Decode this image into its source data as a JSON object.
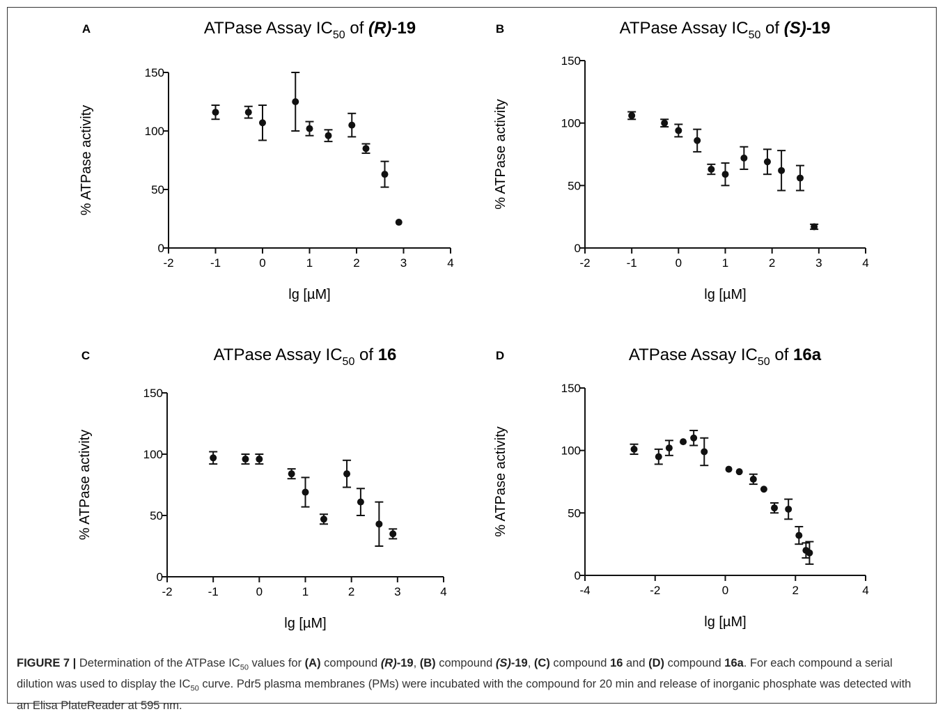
{
  "chart_data": [
    {
      "panel": "A",
      "type": "scatter",
      "title": "ATPase Assay IC50 of (R)-19",
      "title_prefix": "ATPase Assay IC",
      "title_sub": "50",
      "title_mid": " of ",
      "title_compound_italic": "(R)",
      "title_compound_bold": "-19",
      "xlabel": "lg [µM]",
      "ylabel": "% ATPase activity",
      "xlim": [
        -2,
        4
      ],
      "ylim": [
        0,
        150
      ],
      "xticks": [
        "-2",
        "-1",
        "0",
        "1",
        "2",
        "3",
        "4"
      ],
      "yticks": [
        "0",
        "50",
        "100",
        "150"
      ],
      "points": [
        {
          "x": -1.0,
          "y": 116,
          "err": 6
        },
        {
          "x": -0.3,
          "y": 116,
          "err": 5
        },
        {
          "x": 0.0,
          "y": 107,
          "err": 15
        },
        {
          "x": 0.7,
          "y": 125,
          "err": 25
        },
        {
          "x": 1.0,
          "y": 102,
          "err": 6
        },
        {
          "x": 1.4,
          "y": 96,
          "err": 5
        },
        {
          "x": 1.9,
          "y": 105,
          "err": 10
        },
        {
          "x": 2.2,
          "y": 85,
          "err": 4
        },
        {
          "x": 2.6,
          "y": 63,
          "err": 11
        },
        {
          "x": 2.9,
          "y": 22,
          "err": 0
        }
      ]
    },
    {
      "panel": "B",
      "type": "scatter",
      "title": "ATPase Assay IC50 of (S)-19",
      "title_prefix": "ATPase Assay IC",
      "title_sub": "50",
      "title_mid": " of ",
      "title_compound_italic": "(S)",
      "title_compound_bold": "-19",
      "xlabel": "lg [µM]",
      "ylabel": "% ATPase activity",
      "xlim": [
        -2,
        4
      ],
      "ylim": [
        0,
        150
      ],
      "xticks": [
        "-2",
        "-1",
        "0",
        "1",
        "2",
        "3",
        "4"
      ],
      "yticks": [
        "0",
        "50",
        "100",
        "150"
      ],
      "points": [
        {
          "x": -1.0,
          "y": 106,
          "err": 3
        },
        {
          "x": -0.3,
          "y": 100,
          "err": 3
        },
        {
          "x": 0.0,
          "y": 94,
          "err": 5
        },
        {
          "x": 0.4,
          "y": 86,
          "err": 9
        },
        {
          "x": 0.7,
          "y": 63,
          "err": 4
        },
        {
          "x": 1.0,
          "y": 59,
          "err": 9
        },
        {
          "x": 1.4,
          "y": 72,
          "err": 9
        },
        {
          "x": 1.9,
          "y": 69,
          "err": 10
        },
        {
          "x": 2.2,
          "y": 62,
          "err": 16
        },
        {
          "x": 2.6,
          "y": 56,
          "err": 10
        },
        {
          "x": 2.9,
          "y": 17,
          "err": 2
        }
      ]
    },
    {
      "panel": "C",
      "type": "scatter",
      "title": "ATPase Assay IC50 of 16",
      "title_prefix": "ATPase Assay IC",
      "title_sub": "50",
      "title_mid": " of ",
      "title_compound_italic": "",
      "title_compound_bold": "16",
      "xlabel": "lg [µM]",
      "ylabel": "% ATPase activity",
      "xlim": [
        -2,
        4
      ],
      "ylim": [
        0,
        150
      ],
      "xticks": [
        "-2",
        "-1",
        "0",
        "1",
        "2",
        "3",
        "4"
      ],
      "yticks": [
        "0",
        "50",
        "100",
        "150"
      ],
      "points": [
        {
          "x": -1.0,
          "y": 97,
          "err": 5
        },
        {
          "x": -0.3,
          "y": 96,
          "err": 4
        },
        {
          "x": 0.0,
          "y": 96,
          "err": 4
        },
        {
          "x": 0.7,
          "y": 84,
          "err": 4
        },
        {
          "x": 1.0,
          "y": 69,
          "err": 12
        },
        {
          "x": 1.4,
          "y": 47,
          "err": 4
        },
        {
          "x": 1.9,
          "y": 84,
          "err": 11
        },
        {
          "x": 2.2,
          "y": 61,
          "err": 11
        },
        {
          "x": 2.6,
          "y": 43,
          "err": 18
        },
        {
          "x": 2.9,
          "y": 35,
          "err": 4
        }
      ]
    },
    {
      "panel": "D",
      "type": "scatter",
      "title": "ATPase Assay IC50 of 16a",
      "title_prefix": "ATPase Assay IC",
      "title_sub": "50",
      "title_mid": " of ",
      "title_compound_italic": "",
      "title_compound_bold": "16a",
      "xlabel": "lg [µM]",
      "ylabel": "% ATPase activity",
      "xlim": [
        -4,
        4
      ],
      "ylim": [
        0,
        150
      ],
      "xticks": [
        "-4",
        "-2",
        "0",
        "2",
        "4"
      ],
      "yticks": [
        "0",
        "50",
        "100",
        "150"
      ],
      "points": [
        {
          "x": -2.6,
          "y": 101,
          "err": 4
        },
        {
          "x": -1.9,
          "y": 95,
          "err": 6
        },
        {
          "x": -1.6,
          "y": 102,
          "err": 6
        },
        {
          "x": -1.2,
          "y": 107,
          "err": 0
        },
        {
          "x": -0.9,
          "y": 110,
          "err": 6
        },
        {
          "x": -0.6,
          "y": 99,
          "err": 11
        },
        {
          "x": 0.1,
          "y": 85,
          "err": 0
        },
        {
          "x": 0.4,
          "y": 83,
          "err": 0
        },
        {
          "x": 0.8,
          "y": 77,
          "err": 4
        },
        {
          "x": 1.1,
          "y": 69,
          "err": 0
        },
        {
          "x": 1.4,
          "y": 54,
          "err": 4
        },
        {
          "x": 1.8,
          "y": 53,
          "err": 8
        },
        {
          "x": 2.1,
          "y": 32,
          "err": 7
        },
        {
          "x": 2.3,
          "y": 20,
          "err": 6
        },
        {
          "x": 2.4,
          "y": 18,
          "err": 9
        }
      ]
    }
  ],
  "caption": {
    "figure_label": "FIGURE 7 |",
    "t1": " Determination of the ATPase IC",
    "sub50a": "50",
    "t2": " values for ",
    "a_label": "(A)",
    "t3": " compound ",
    "a_italic": "(R)",
    "a_bold": "-19",
    "t4": ", ",
    "b_label": "(B)",
    "t5": " compound ",
    "b_italic": "(S)",
    "b_bold": "-19",
    "t6": ", ",
    "c_label": "(C)",
    "t7": " compound ",
    "c_bold": "16",
    "t8": " and ",
    "d_label": "(D)",
    "t9": " compound ",
    "d_bold": "16a",
    "t10": ". For each compound a serial dilution was used to display the IC",
    "sub50b": "50",
    "t11": " curve. Pdr5 plasma membranes (PMs) were incubated with the compound for 20 min and release of inorganic phosphate was detected with an Elisa PlateReader at 595 nm."
  }
}
